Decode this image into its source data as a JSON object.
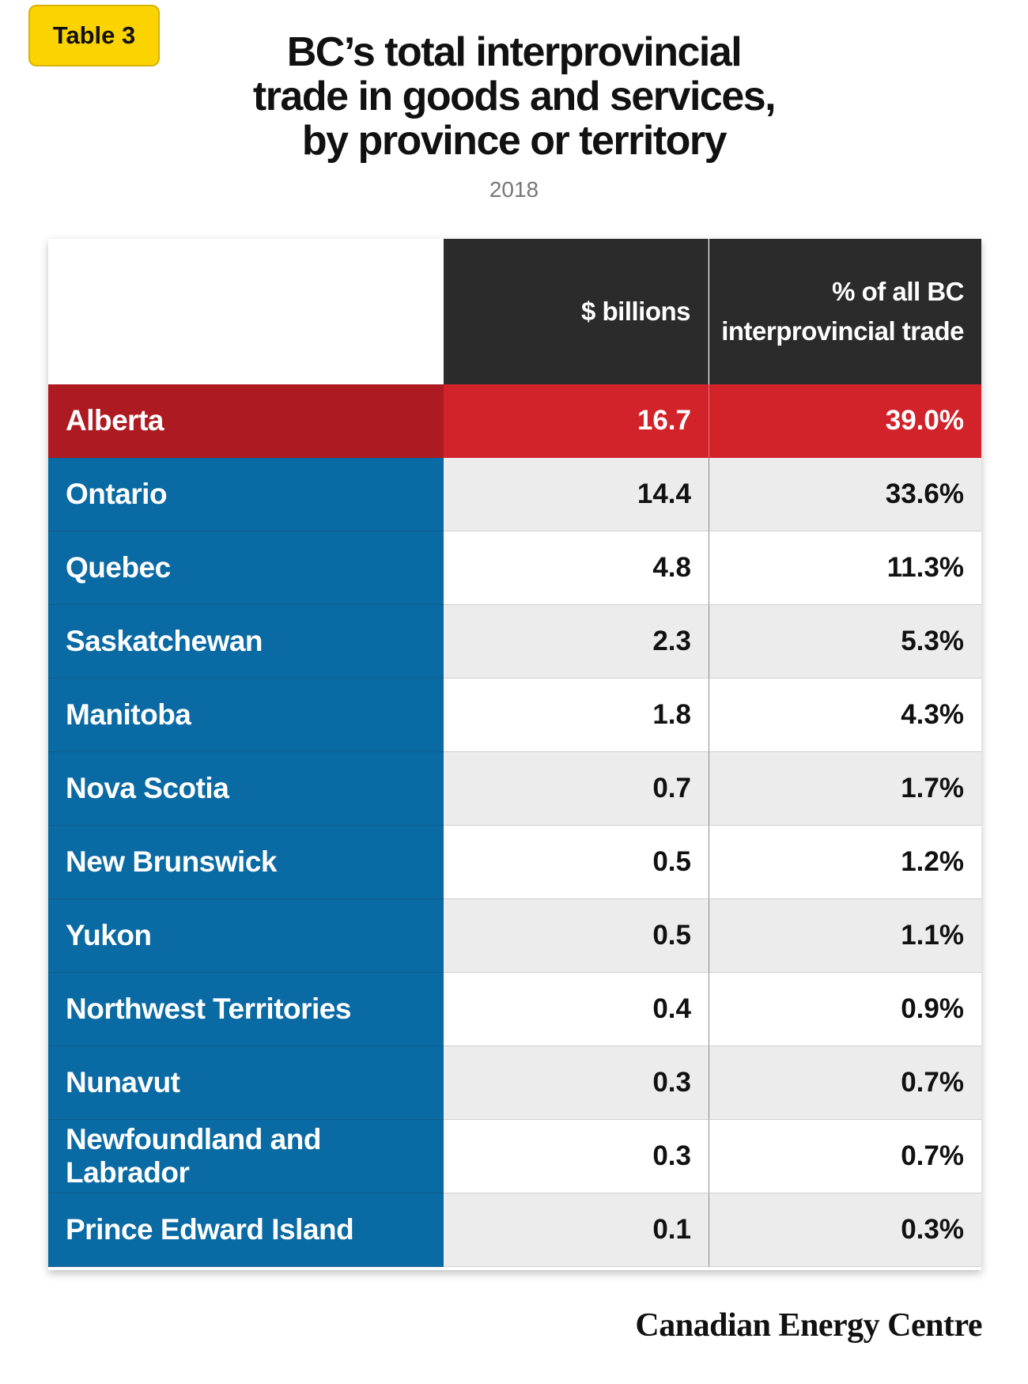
{
  "badge": "Table 3",
  "title_lines": [
    "BC’s total interprovincial",
    "trade in goods and services,",
    "by province or territory"
  ],
  "subtitle": "2018",
  "logo": "Canadian Energy Centre",
  "chart_data": {
    "type": "table",
    "title": "BC’s total interprovincial trade in goods and services, by province or territory",
    "subtitle": "2018",
    "columns": [
      "$ billions",
      "% of all BC interprovincial trade"
    ],
    "header_lines": {
      "billions": [
        "$ billions"
      ],
      "percent": [
        "% of all BC",
        "interprovincial trade"
      ]
    },
    "rows": [
      {
        "name": "Alberta",
        "billions": "16.7",
        "percent": "39.0%"
      },
      {
        "name": "Ontario",
        "billions": "14.4",
        "percent": "33.6%"
      },
      {
        "name": "Quebec",
        "billions": "4.8",
        "percent": "11.3%"
      },
      {
        "name": "Saskatchewan",
        "billions": "2.3",
        "percent": "5.3%"
      },
      {
        "name": "Manitoba",
        "billions": "1.8",
        "percent": "4.3%"
      },
      {
        "name": "Nova Scotia",
        "billions": "0.7",
        "percent": "1.7%"
      },
      {
        "name": "New Brunswick",
        "billions": "0.5",
        "percent": "1.2%"
      },
      {
        "name": "Yukon",
        "billions": "0.5",
        "percent": "1.1%"
      },
      {
        "name": "Northwest Territories",
        "billions": "0.4",
        "percent": "0.9%"
      },
      {
        "name": "Nunavut",
        "billions": "0.3",
        "percent": "0.7%"
      },
      {
        "name": "Newfoundland and Labrador",
        "billions": "0.3",
        "percent": "0.7%"
      },
      {
        "name": "Prince Edward Island",
        "billions": "0.1",
        "percent": "0.3%"
      }
    ],
    "highlight_row": "Alberta"
  },
  "colors": {
    "badge": "#fbd400",
    "header": "#2b2b2b",
    "name_column": "#0a6aa3",
    "highlight_name": "#ae1a22",
    "highlight_values": "#d2232b",
    "shaded_row": "#ececec"
  }
}
